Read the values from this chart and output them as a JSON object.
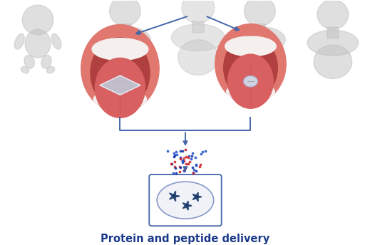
{
  "bg_color": "#ffffff",
  "title": "Protein and peptide delivery",
  "title_color": "#1a3a8a",
  "title_fontsize": 10.5,
  "mouth_outer": "#e07870",
  "mouth_inner": "#c85050",
  "mouth_dark": "#b04040",
  "tongue_color": "#d96060",
  "teeth_color": "#f5f0ee",
  "person_color": "#c0c0c0",
  "arrow_color": "#4466aa",
  "box_color": "#4466aa",
  "dot_red": "#cc2222",
  "dot_blue": "#2255cc",
  "dot_darkblue": "#1133aa",
  "film_color": "#c0c8d8",
  "film_edge": "#e8e8f0",
  "tablet_color": "#d0d4e0",
  "protein_color": "#1a3a6b",
  "oval_edge": "#8899cc"
}
